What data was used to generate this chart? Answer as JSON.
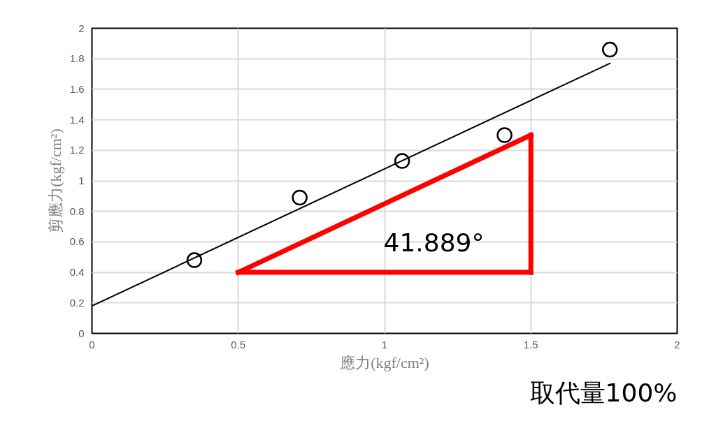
{
  "chart_data": {
    "type": "scatter",
    "xlabel": "應力(kgf/cm²)",
    "ylabel": "剪應力(kgf/cm²)",
    "xlim": [
      0,
      2
    ],
    "ylim": [
      0,
      2
    ],
    "xticks": [
      0,
      0.5,
      1,
      1.5,
      2
    ],
    "yticks": [
      0,
      0.2,
      0.4,
      0.6,
      0.8,
      1,
      1.2,
      1.4,
      1.6,
      1.8,
      2
    ],
    "grid": true,
    "series": [
      {
        "color": "#000000",
        "marker": "circle",
        "x": [
          0.35,
          0.71,
          1.06,
          1.41,
          1.77
        ],
        "values": [
          0.48,
          0.89,
          1.13,
          1.3,
          1.86
        ]
      },
      {
        "type": "line",
        "color": "#000000",
        "x": [
          0,
          1.77
        ],
        "values": [
          0.18,
          1.77
        ]
      },
      {
        "type": "line",
        "color": "#ff0000",
        "x": [
          0.5,
          1.5
        ],
        "values": [
          0.4,
          1.3
        ]
      },
      {
        "type": "line",
        "color": "#ff0000",
        "x": [
          0.5,
          1.5
        ],
        "values": [
          0.4,
          0.4
        ]
      },
      {
        "type": "line",
        "color": "#ff0000",
        "x": [
          1.5,
          1.5
        ],
        "values": [
          0.4,
          1.3
        ]
      }
    ],
    "annotations": [
      "41.889°",
      "取代量100%"
    ]
  }
}
